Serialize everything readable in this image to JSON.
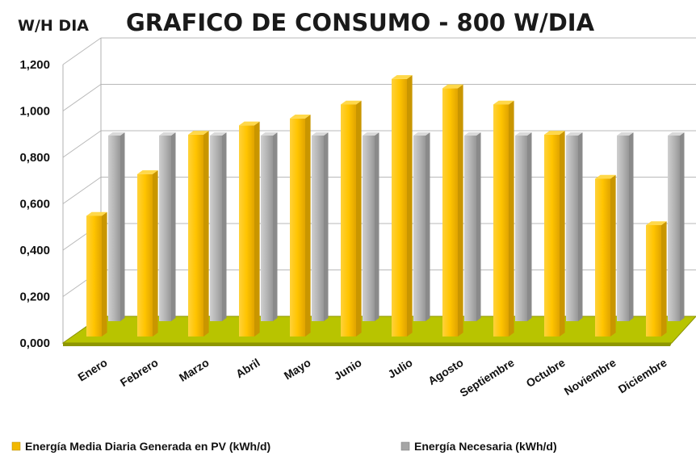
{
  "chart_data": {
    "type": "bar",
    "title": "GRAFICO DE CONSUMO - 800 W/DIA",
    "ylabel": "W/H DIA",
    "xlabel": "",
    "ylim": [
      0,
      1.2
    ],
    "yticks": [
      "0,000",
      "0,200",
      "0,400",
      "0,600",
      "0,800",
      "1,000",
      "1,200"
    ],
    "ytick_values": [
      0,
      0.2,
      0.4,
      0.6,
      0.8,
      1.0,
      1.2
    ],
    "categories": [
      "Enero",
      "Febrero",
      "Marzo",
      "Abril",
      "Mayo",
      "Junio",
      "Julio",
      "Agosto",
      "Septiembre",
      "Octubre",
      "Noviembre",
      "Diciembre"
    ],
    "series": [
      {
        "name": "Energía Media Diaria Generada en PV (kWh/d)",
        "color": "#f2b800",
        "values": [
          0.52,
          0.7,
          0.87,
          0.91,
          0.94,
          1.0,
          1.11,
          1.07,
          1.0,
          0.87,
          0.68,
          0.48
        ]
      },
      {
        "name": "Energía Necesaria (kWh/d)",
        "color": "#a6a6a6",
        "values": [
          0.8,
          0.8,
          0.8,
          0.8,
          0.8,
          0.8,
          0.8,
          0.8,
          0.8,
          0.8,
          0.8,
          0.8
        ]
      }
    ],
    "grid": true,
    "legend_position": "bottom"
  }
}
